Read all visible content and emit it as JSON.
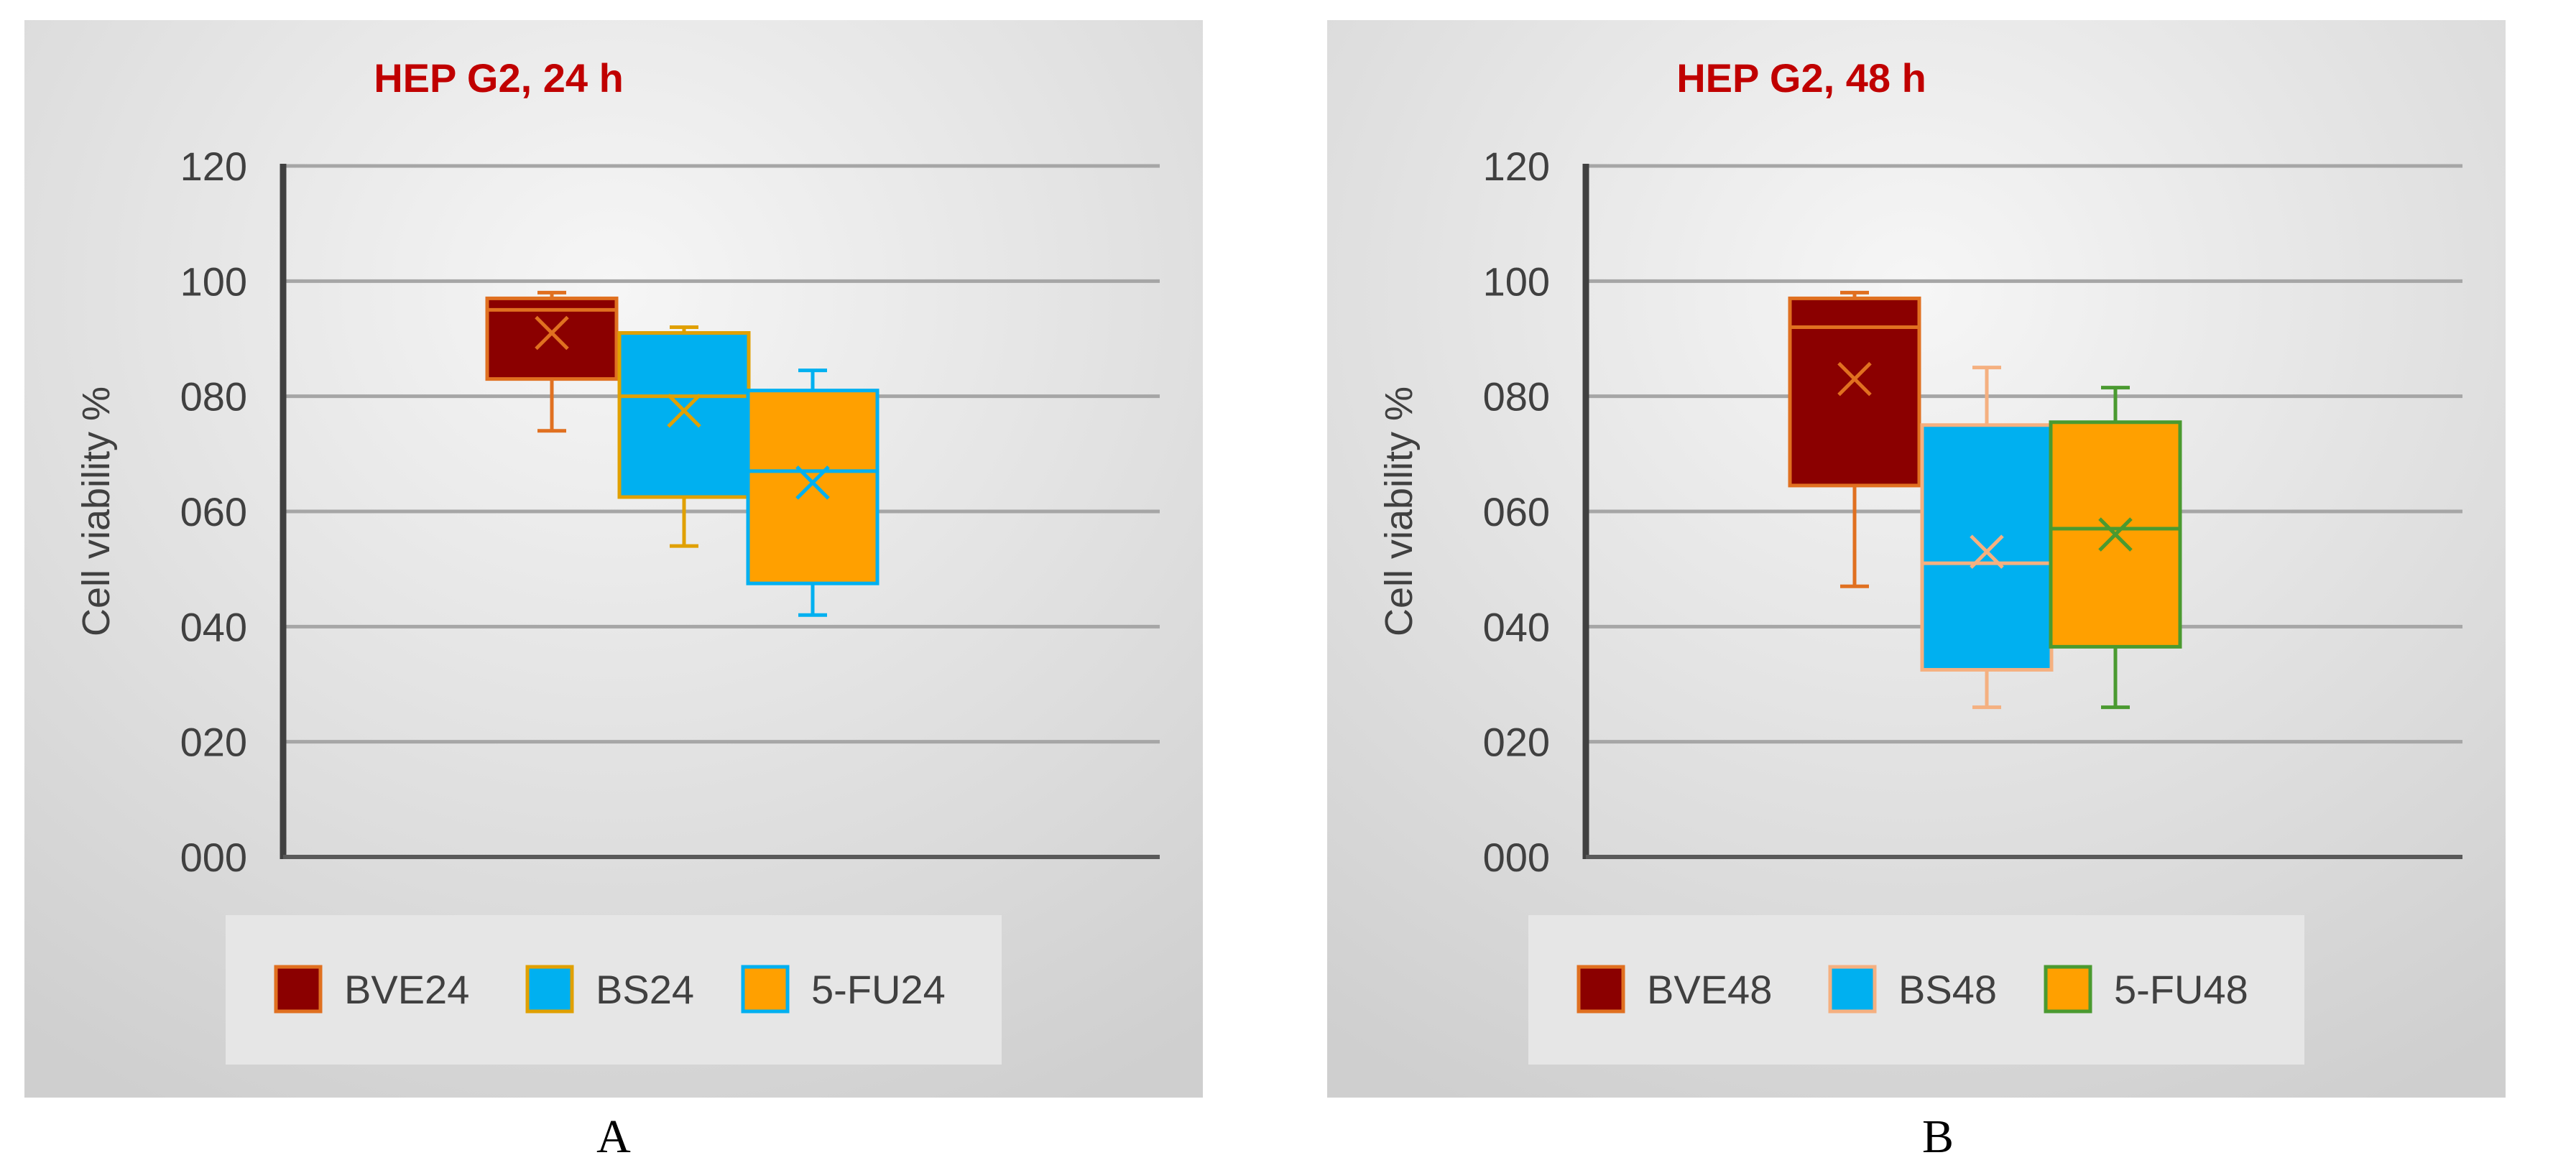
{
  "chart_data": [
    {
      "type": "boxplot",
      "panel_label": "A",
      "title": "HEP G2, 24 h",
      "ylabel": "Cell viability %",
      "xlabel": "",
      "ylim": [
        0,
        120
      ],
      "yticks": [
        "000",
        "020",
        "040",
        "060",
        "080",
        "100",
        "120"
      ],
      "grid": true,
      "legend_position": "bottom",
      "series": [
        {
          "name": "BVE24",
          "fill": "#8B0000",
          "edge": "#E07020",
          "whisker": "#E07020",
          "min": 74,
          "q1": 83,
          "median": 95,
          "q3": 97,
          "max": 98,
          "mean": 91
        },
        {
          "name": "BS24",
          "fill": "#00B0F0",
          "edge": "#E0A000",
          "whisker": "#E0A000",
          "min": 54,
          "q1": 62.5,
          "median": 80,
          "q3": 91,
          "max": 92,
          "mean": 77.5
        },
        {
          "name": "5-FU24",
          "fill": "#FFA000",
          "edge": "#00B0F0",
          "whisker": "#00B0F0",
          "min": 42,
          "q1": 47.5,
          "median": 67,
          "q3": 81,
          "max": 84.5,
          "mean": 65
        }
      ]
    },
    {
      "type": "boxplot",
      "panel_label": "B",
      "title": "HEP G2, 48 h",
      "ylabel": "Cell viability %",
      "xlabel": "",
      "ylim": [
        0,
        120
      ],
      "yticks": [
        "000",
        "020",
        "040",
        "060",
        "080",
        "100",
        "120"
      ],
      "grid": true,
      "legend_position": "bottom",
      "series": [
        {
          "name": "BVE48",
          "fill": "#8B0000",
          "edge": "#E07020",
          "whisker": "#E07020",
          "min": 47,
          "q1": 64.5,
          "median": 92,
          "q3": 97,
          "max": 98,
          "mean": 83
        },
        {
          "name": "BS48",
          "fill": "#00B0F0",
          "edge": "#F5B080",
          "whisker": "#F5B080",
          "min": 26,
          "q1": 32.5,
          "median": 51,
          "q3": 75,
          "max": 85,
          "mean": 53
        },
        {
          "name": "5-FU48",
          "fill": "#FFA000",
          "edge": "#4A9A30",
          "whisker": "#4A9A30",
          "min": 26,
          "q1": 36.5,
          "median": 57,
          "q3": 75.5,
          "max": 81.5,
          "mean": 56
        }
      ]
    }
  ]
}
